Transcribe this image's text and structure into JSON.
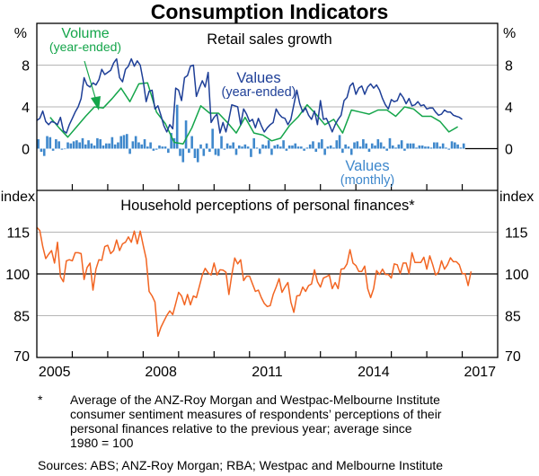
{
  "chart_data": [
    {
      "type": "line",
      "title": "Consumption Indicators",
      "panel_title": "Retail sales growth",
      "ylabel_left": "%",
      "ylabel_right": "%",
      "ylim": [
        -4,
        12
      ],
      "yticks": [
        0,
        4,
        8
      ],
      "grid": true,
      "xlim": [
        "Jan 2005",
        "Dec 2017"
      ],
      "colors": {
        "values_year_ended": "#1e3f97",
        "volume_year_ended": "#14a54a",
        "values_monthly": "#3f88cc"
      },
      "series": [
        {
          "name": "Values (year-ended)",
          "label_line1": "Values",
          "label_line2": "(year-ended)",
          "type": "line",
          "frequency": "monthly",
          "start": "Jan 2005",
          "values": [
            2.7,
            2.9,
            3.6,
            2.6,
            2.3,
            2.6,
            2.5,
            2.3,
            3.0,
            1.7,
            1.5,
            2.3,
            2.9,
            3.5,
            4.0,
            4.8,
            6.8,
            6.1,
            5.9,
            6.3,
            6.1,
            6.6,
            7.6,
            7.1,
            7.3,
            7.5,
            8.2,
            8.6,
            6.8,
            6.4,
            7.6,
            7.9,
            8.6,
            7.9,
            8.4,
            8.0,
            6.5,
            4.5,
            5.5,
            5.6,
            3.8,
            4.1,
            3.2,
            2.2,
            1.6,
            2.3,
            1.9,
            5.8,
            5.6,
            4.6,
            6.8,
            7.0,
            7.9,
            8.0,
            5.0,
            5.8,
            6.5,
            5.9,
            7.3,
            2.5,
            3.0,
            3.3,
            1.5,
            2.5,
            1.6,
            2.8,
            4.2,
            4.1,
            4.0,
            2.3,
            3.8,
            3.3,
            2.6,
            2.8,
            2.0,
            2.9,
            2.2,
            1.6,
            2.0,
            2.3,
            2.5,
            3.8,
            3.3,
            3.0,
            2.9,
            2.3,
            2.8,
            4.2,
            5.6,
            4.3,
            3.5,
            3.9,
            3.2,
            2.8,
            3.6,
            2.3,
            4.6,
            2.8,
            2.9,
            2.3,
            1.6,
            2.3,
            2.8,
            3.2,
            4.6,
            4.9,
            6.0,
            6.3,
            5.2,
            5.8,
            6.0,
            5.2,
            5.9,
            6.2,
            5.8,
            6.1,
            5.6,
            4.8,
            4.2,
            3.8,
            4.7,
            4.5,
            4.6,
            5.3,
            4.9,
            4.3,
            4.8,
            4.1,
            4.2,
            4.5,
            4.1,
            4.2,
            3.8,
            3.9,
            3.9,
            3.5,
            3.2,
            3.3,
            3.7,
            3.5,
            3.5,
            3.2,
            3.1,
            3.0,
            2.8
          ]
        },
        {
          "name": "Volume (year-ended)",
          "label_line1": "Volume",
          "label_line2": "(year-ended)",
          "type": "line",
          "frequency": "quarterly",
          "start": "Jun 2005",
          "values": [
            3.0,
            2.0,
            1.1,
            2.1,
            3.1,
            4.0,
            3.9,
            4.8,
            5.8,
            4.5,
            6.2,
            6.3,
            3.5,
            2.4,
            0.6,
            0.45,
            2.0,
            4.1,
            3.4,
            3.4,
            2.5,
            1.5,
            3.0,
            1.5,
            1.3,
            0.75,
            1.0,
            2.2,
            3.05,
            4.2,
            3.3,
            2.3,
            2.8,
            1.5,
            3.7,
            3.5,
            3.3,
            3.7,
            3.7,
            3.1,
            4.0,
            3.8,
            3.1,
            3.1,
            2.6,
            1.6,
            2.1
          ]
        },
        {
          "name": "Values (monthly)",
          "label_line1": "Values",
          "label_line2": "(monthly)",
          "type": "bar",
          "frequency": "monthly",
          "start": "Jan 2005",
          "values": [
            0.9,
            -0.3,
            -0.7,
            1.2,
            1.1,
            -0.2,
            0.9,
            0.7,
            -0.1,
            0.0,
            0.6,
            0.5,
            0.7,
            0.8,
            0.6,
            1.0,
            0.4,
            0.8,
            0.5,
            0.3,
            1.0,
            0.9,
            0.3,
            0.5,
            0.5,
            1.1,
            0.4,
            0.6,
            1.2,
            1.3,
            1.4,
            -0.5,
            0.7,
            1.2,
            0.6,
            0.4,
            0.9,
            0.2,
            0.6,
            -0.2,
            -0.1,
            0.3,
            0.2,
            0.2,
            -0.4,
            1.5,
            1.0,
            4.2,
            -0.7,
            -1.3,
            2.7,
            -0.4,
            1.2,
            -0.9,
            -1.3,
            0.4,
            -0.7,
            0.5,
            -0.3,
            1.9,
            -0.6,
            -0.7,
            1.2,
            -0.1,
            0.5,
            0.3,
            0.6,
            -0.6,
            0.3,
            0.2,
            0.4,
            0.2,
            -0.8,
            1.0,
            0.1,
            -0.5,
            0.4,
            0.3,
            0.8,
            -0.6,
            0.3,
            0.4,
            0.2,
            0.8,
            -0.2,
            0.3,
            0.3,
            0.5,
            0.2,
            0.2,
            -0.2,
            0.1,
            0.4,
            0.7,
            -0.3,
            0.6,
            0.9,
            -0.6,
            0.2,
            0.3,
            0.1,
            0.8,
            1.3,
            -0.4,
            0.4,
            0.2,
            -0.6,
            0.6,
            0.7,
            0.2,
            0.9,
            0.5,
            -0.3,
            0.5,
            0.3,
            0.9,
            0.6,
            0.2,
            -0.2,
            1.0,
            0.3,
            0.1,
            0.4,
            0.8,
            -0.2,
            0.5,
            0.5,
            0.5,
            0.1,
            0.3,
            0.3,
            0.2,
            0.2,
            0.1,
            0.6,
            0.6,
            0.2,
            0.5,
            0.1,
            -0.1,
            0.7,
            0.6,
            0.4,
            0.1,
            0.5
          ]
        }
      ]
    },
    {
      "type": "line",
      "panel_title": "Household perceptions of personal finances*",
      "ylabel_left": "index",
      "ylabel_right": "index",
      "ylim": [
        70,
        130
      ],
      "yticks": [
        70,
        85,
        100,
        115
      ],
      "grid": true,
      "xlim": [
        "Jan 2005",
        "Dec 2017"
      ],
      "xtick_labels": [
        "2005",
        "2008",
        "2011",
        "2014",
        "2017"
      ],
      "colors": {
        "line": "#f26522"
      },
      "series": [
        {
          "type": "line",
          "frequency": "monthly",
          "start": "Jan 2005",
          "values": [
            116.7,
            115.6,
            109.8,
            105.5,
            107.1,
            108.4,
            103.9,
            111.4,
            99.0,
            97.2,
            104.7,
            105.1,
            104.7,
            107.6,
            107.6,
            107.3,
            98.0,
            102.3,
            103.9,
            94.2,
            101.7,
            105.1,
            104.9,
            109.8,
            110.3,
            107.3,
            108.4,
            112.2,
            108.4,
            110.8,
            111.4,
            113.3,
            111.4,
            115.4,
            110.8,
            115.4,
            110.3,
            105.5,
            93.7,
            92.1,
            89.9,
            77.6,
            80.8,
            83.0,
            85.1,
            86.7,
            85.4,
            89.4,
            93.4,
            92.1,
            88.9,
            92.6,
            88.9,
            92.1,
            91.5,
            95.5,
            99.6,
            102.0,
            100.4,
            99.6,
            103.9,
            99.6,
            101.5,
            101.4,
            100.6,
            92.6,
            99.6,
            105.7,
            103.6,
            105.1,
            97.6,
            99.2,
            99.2,
            96.4,
            93.7,
            94.2,
            91.5,
            89.4,
            88.3,
            88.6,
            92.6,
            95.3,
            98.3,
            93.4,
            95.3,
            96.9,
            89.9,
            86.2,
            92.1,
            92.3,
            95.3,
            93.7,
            95.8,
            96.4,
            101.5,
            97.2,
            95.3,
            98.5,
            99.0,
            99.6,
            94.7,
            96.9,
            94.7,
            101.7,
            101.9,
            103.6,
            108.7,
            103.9,
            103.0,
            100.9,
            100.9,
            102.8,
            94.7,
            91.5,
            94.7,
            101.2,
            99.8,
            101.7,
            99.8,
            99.8,
            98.5,
            103.6,
            103.3,
            100.1,
            103.9,
            103.9,
            100.1,
            107.6,
            104.1,
            104.1,
            104.1,
            106.0,
            101.7,
            106.5,
            103.3,
            99.6,
            100.6,
            104.7,
            101.7,
            103.3,
            105.8,
            104.4,
            104.4,
            103.3,
            100.1,
            100.1,
            95.8,
            100.9
          ]
        }
      ]
    }
  ],
  "footnote": {
    "marker": "*",
    "lines": [
      "Average of the ANZ-Roy Morgan and Westpac-Melbourne Institute",
      "consumer sentiment measures of respondents’ perceptions of their",
      "personal finances relative to the previous year; average since",
      "1980 = 100"
    ]
  },
  "sources": "Sources: ABS; ANZ-Roy Morgan; RBA; Westpac and Melbourne Institute"
}
